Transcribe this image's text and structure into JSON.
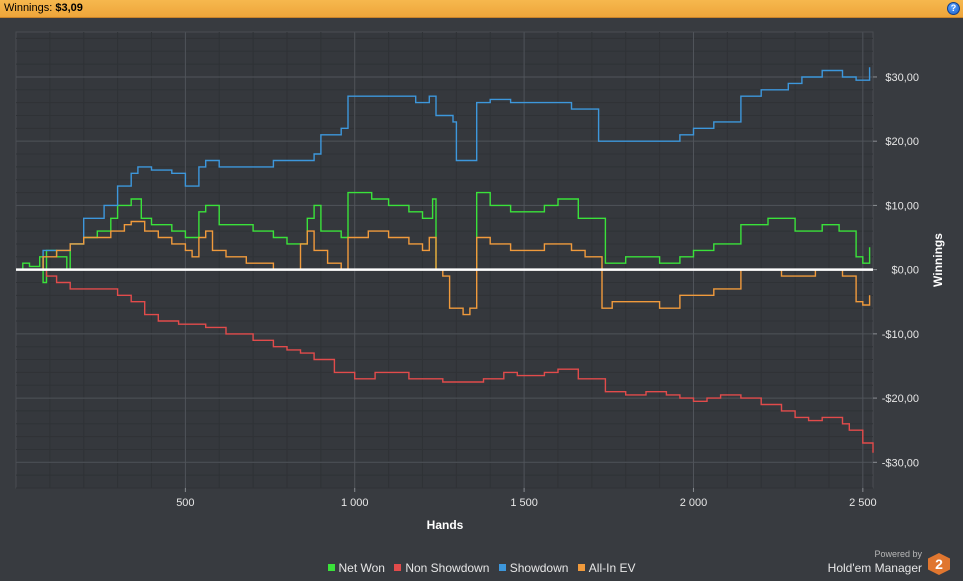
{
  "header": {
    "winnings_label": "Winnings:",
    "winnings_value": "$3,09",
    "help_icon": "help-icon",
    "help_glyph": "?"
  },
  "footer": {
    "powered_by": "Powered by",
    "brand": "Hold'em Manager",
    "logo_glyph": "2"
  },
  "colors": {
    "net_won": "#3ae23a",
    "non_showdown": "#e24b4b",
    "showdown": "#3d97dc",
    "allin_ev": "#f09a3c",
    "zero_line": "#ffffff",
    "background": "#383b40",
    "titlebar": "#f3b046"
  },
  "chart_data": {
    "type": "line",
    "xlabel": "Hands",
    "ylabel": "Winnings",
    "xlim": [
      0,
      2530
    ],
    "ylim": [
      -34,
      37
    ],
    "x_ticks": [
      500,
      1000,
      1500,
      2000,
      2500
    ],
    "x_tick_labels": [
      "500",
      "1 000",
      "1 500",
      "2 000",
      "2 500"
    ],
    "y_ticks": [
      30,
      20,
      10,
      0,
      -10,
      -20,
      -30
    ],
    "y_tick_labels": [
      "$30,00",
      "$20,00",
      "$10,00",
      "$0,00",
      "-$10,00",
      "-$20,00",
      "-$30,00"
    ],
    "grid": true,
    "legend_position": "bottom",
    "series": [
      {
        "name": "Net Won",
        "color": "#3ae23a",
        "points": [
          [
            0,
            0
          ],
          [
            20,
            1
          ],
          [
            40,
            0.5
          ],
          [
            70,
            2
          ],
          [
            80,
            -2
          ],
          [
            90,
            3
          ],
          [
            120,
            2
          ],
          [
            150,
            0
          ],
          [
            160,
            4
          ],
          [
            200,
            5
          ],
          [
            240,
            6
          ],
          [
            280,
            8
          ],
          [
            300,
            10
          ],
          [
            340,
            11
          ],
          [
            370,
            8
          ],
          [
            400,
            7
          ],
          [
            460,
            6
          ],
          [
            500,
            5
          ],
          [
            540,
            9
          ],
          [
            560,
            10
          ],
          [
            600,
            7
          ],
          [
            700,
            6
          ],
          [
            760,
            5
          ],
          [
            800,
            4
          ],
          [
            860,
            8
          ],
          [
            880,
            10
          ],
          [
            900,
            6
          ],
          [
            960,
            5
          ],
          [
            980,
            12
          ],
          [
            1050,
            11
          ],
          [
            1100,
            10
          ],
          [
            1160,
            9
          ],
          [
            1200,
            8
          ],
          [
            1230,
            11
          ],
          [
            1240,
            0
          ],
          [
            1300,
            0
          ],
          [
            1340,
            0
          ],
          [
            1360,
            12
          ],
          [
            1400,
            10
          ],
          [
            1460,
            9
          ],
          [
            1500,
            9
          ],
          [
            1560,
            10
          ],
          [
            1600,
            11
          ],
          [
            1660,
            8
          ],
          [
            1740,
            1
          ],
          [
            1800,
            2
          ],
          [
            1900,
            1
          ],
          [
            1960,
            2
          ],
          [
            2000,
            3
          ],
          [
            2060,
            4
          ],
          [
            2110,
            4
          ],
          [
            2140,
            7
          ],
          [
            2220,
            8
          ],
          [
            2300,
            6
          ],
          [
            2380,
            7
          ],
          [
            2430,
            6
          ],
          [
            2480,
            2
          ],
          [
            2500,
            1
          ],
          [
            2520,
            3.5
          ]
        ]
      },
      {
        "name": "Non Showdown",
        "color": "#e24b4b",
        "points": [
          [
            0,
            0
          ],
          [
            80,
            0
          ],
          [
            90,
            -1
          ],
          [
            120,
            -2
          ],
          [
            160,
            -3
          ],
          [
            200,
            -3
          ],
          [
            260,
            -3
          ],
          [
            300,
            -4
          ],
          [
            340,
            -5
          ],
          [
            380,
            -7
          ],
          [
            420,
            -8
          ],
          [
            480,
            -8.5
          ],
          [
            560,
            -9
          ],
          [
            620,
            -10
          ],
          [
            700,
            -11
          ],
          [
            760,
            -12
          ],
          [
            800,
            -12.5
          ],
          [
            840,
            -13
          ],
          [
            880,
            -14
          ],
          [
            940,
            -16
          ],
          [
            1000,
            -17
          ],
          [
            1060,
            -16
          ],
          [
            1100,
            -16
          ],
          [
            1160,
            -17
          ],
          [
            1200,
            -17
          ],
          [
            1260,
            -17.5
          ],
          [
            1320,
            -17.5
          ],
          [
            1380,
            -17
          ],
          [
            1440,
            -16
          ],
          [
            1480,
            -16.5
          ],
          [
            1560,
            -16
          ],
          [
            1600,
            -15.5
          ],
          [
            1660,
            -17
          ],
          [
            1740,
            -19
          ],
          [
            1800,
            -19.5
          ],
          [
            1860,
            -19
          ],
          [
            1920,
            -19.5
          ],
          [
            1960,
            -20
          ],
          [
            2000,
            -20.5
          ],
          [
            2040,
            -20
          ],
          [
            2080,
            -19.5
          ],
          [
            2140,
            -20
          ],
          [
            2200,
            -21
          ],
          [
            2260,
            -22
          ],
          [
            2300,
            -23
          ],
          [
            2340,
            -23.5
          ],
          [
            2380,
            -23
          ],
          [
            2440,
            -24
          ],
          [
            2460,
            -25
          ],
          [
            2500,
            -27
          ],
          [
            2530,
            -28.5
          ]
        ]
      },
      {
        "name": "Showdown",
        "color": "#3d97dc",
        "points": [
          [
            0,
            0
          ],
          [
            40,
            0
          ],
          [
            80,
            3
          ],
          [
            160,
            4
          ],
          [
            200,
            8
          ],
          [
            260,
            10
          ],
          [
            300,
            13
          ],
          [
            340,
            15
          ],
          [
            360,
            16
          ],
          [
            400,
            15.5
          ],
          [
            460,
            15
          ],
          [
            500,
            13
          ],
          [
            540,
            16
          ],
          [
            560,
            17
          ],
          [
            600,
            16
          ],
          [
            640,
            16
          ],
          [
            700,
            16
          ],
          [
            760,
            17
          ],
          [
            820,
            17
          ],
          [
            880,
            18
          ],
          [
            900,
            21
          ],
          [
            960,
            22
          ],
          [
            980,
            27
          ],
          [
            1040,
            27
          ],
          [
            1100,
            27
          ],
          [
            1180,
            26
          ],
          [
            1220,
            27
          ],
          [
            1240,
            24
          ],
          [
            1290,
            23
          ],
          [
            1300,
            17
          ],
          [
            1340,
            17
          ],
          [
            1360,
            26
          ],
          [
            1400,
            26.5
          ],
          [
            1460,
            26
          ],
          [
            1520,
            26
          ],
          [
            1600,
            26
          ],
          [
            1640,
            25
          ],
          [
            1680,
            25
          ],
          [
            1720,
            20
          ],
          [
            1780,
            20
          ],
          [
            1840,
            20
          ],
          [
            1900,
            20
          ],
          [
            1960,
            21
          ],
          [
            2000,
            22
          ],
          [
            2060,
            23
          ],
          [
            2110,
            23
          ],
          [
            2140,
            27
          ],
          [
            2200,
            28
          ],
          [
            2280,
            29
          ],
          [
            2320,
            30
          ],
          [
            2380,
            31
          ],
          [
            2440,
            30
          ],
          [
            2480,
            29.5
          ],
          [
            2520,
            31.5
          ]
        ]
      },
      {
        "name": "All-In EV",
        "color": "#f09a3c",
        "points": [
          [
            0,
            0
          ],
          [
            40,
            0
          ],
          [
            80,
            2
          ],
          [
            120,
            3
          ],
          [
            160,
            4
          ],
          [
            200,
            5
          ],
          [
            240,
            5
          ],
          [
            280,
            6
          ],
          [
            320,
            7
          ],
          [
            340,
            7.5
          ],
          [
            380,
            6
          ],
          [
            420,
            5
          ],
          [
            460,
            4
          ],
          [
            500,
            3
          ],
          [
            520,
            2
          ],
          [
            540,
            5
          ],
          [
            560,
            6
          ],
          [
            580,
            3
          ],
          [
            620,
            2
          ],
          [
            680,
            1
          ],
          [
            720,
            1
          ],
          [
            760,
            0
          ],
          [
            800,
            0
          ],
          [
            840,
            4
          ],
          [
            860,
            6
          ],
          [
            880,
            3
          ],
          [
            920,
            1
          ],
          [
            960,
            0
          ],
          [
            980,
            5
          ],
          [
            1040,
            6
          ],
          [
            1100,
            5
          ],
          [
            1160,
            4
          ],
          [
            1200,
            3
          ],
          [
            1220,
            5
          ],
          [
            1240,
            0
          ],
          [
            1260,
            -1
          ],
          [
            1280,
            -6
          ],
          [
            1320,
            -7
          ],
          [
            1340,
            -6
          ],
          [
            1360,
            5
          ],
          [
            1400,
            4
          ],
          [
            1460,
            3
          ],
          [
            1500,
            3
          ],
          [
            1560,
            4
          ],
          [
            1600,
            4
          ],
          [
            1640,
            3
          ],
          [
            1680,
            2
          ],
          [
            1730,
            -6
          ],
          [
            1760,
            -5
          ],
          [
            1800,
            -5
          ],
          [
            1860,
            -5
          ],
          [
            1900,
            -6
          ],
          [
            1960,
            -4
          ],
          [
            2000,
            -4
          ],
          [
            2060,
            -3
          ],
          [
            2110,
            -3
          ],
          [
            2140,
            0
          ],
          [
            2200,
            0
          ],
          [
            2260,
            -1
          ],
          [
            2300,
            -1
          ],
          [
            2360,
            0
          ],
          [
            2400,
            0
          ],
          [
            2440,
            -1
          ],
          [
            2480,
            -5
          ],
          [
            2500,
            -5.5
          ],
          [
            2520,
            -4
          ]
        ]
      }
    ]
  }
}
